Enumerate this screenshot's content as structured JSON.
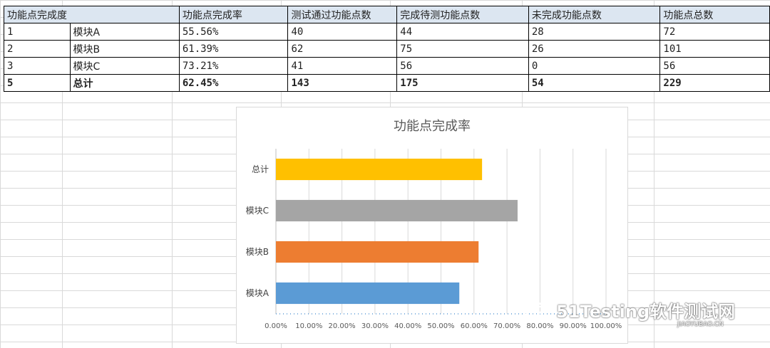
{
  "table": {
    "headers": [
      "功能点完成度",
      "",
      "功能点完成率",
      "测试通过功能点数",
      "完成待测功能点数",
      "未完成功能点数",
      "功能点总数"
    ],
    "rows": [
      [
        "1",
        "模块A",
        "55.56%",
        "40",
        "44",
        "28",
        "72"
      ],
      [
        "2",
        "模块B",
        "61.39%",
        "62",
        "75",
        "26",
        "101"
      ],
      [
        "3",
        "模块C",
        "73.21%",
        "41",
        "56",
        "0",
        "56"
      ],
      [
        "5",
        "总计",
        "62.45%",
        "143",
        "175",
        "54",
        "229"
      ]
    ]
  },
  "chart_data": {
    "type": "bar",
    "orientation": "horizontal",
    "title": "功能点完成率",
    "categories": [
      "模块A",
      "模块B",
      "模块C",
      "总计"
    ],
    "values": [
      55.56,
      61.39,
      73.21,
      62.45
    ],
    "bar_colors": [
      "#5b9bd5",
      "#ed7d31",
      "#a5a5a5",
      "#ffc000"
    ],
    "xlim": [
      0,
      100
    ],
    "x_ticks": [
      "0.00%",
      "10.00%",
      "20.00%",
      "30.00%",
      "40.00%",
      "50.00%",
      "60.00%",
      "70.00%",
      "80.00%",
      "90.00%",
      "100.00%"
    ],
    "grid": true,
    "legend": "none"
  },
  "watermark": {
    "text": "51Testing软件测试网",
    "sub": "JIAOYUBAO.CN",
    "icon": "wechat-icon"
  }
}
